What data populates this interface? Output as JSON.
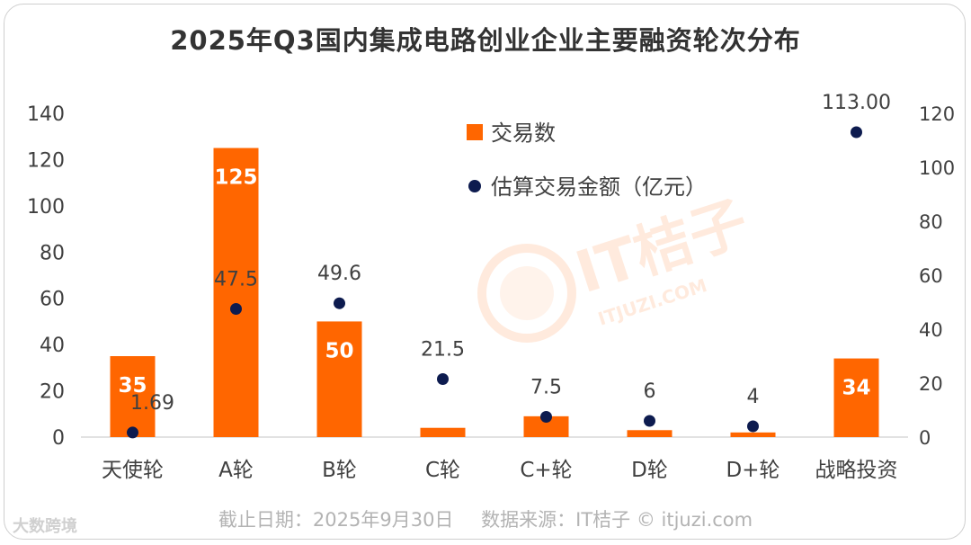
{
  "title": "2025年Q3国内集成电路创业企业主要融资轮次分布",
  "footer": {
    "date_label": "截止日期：2025年9月30日",
    "source_label": "数据来源：IT桔子 © itjuzi.com"
  },
  "watermark": {
    "main": "IT桔子",
    "sub": "ITJUZI.COM"
  },
  "brand": "大数跨境",
  "colors": {
    "bar": "#FF6600",
    "dot": "#0D1B4F",
    "axis": "#D9D9D9",
    "text": "#404040"
  },
  "chart_data": {
    "type": "bar",
    "categories": [
      "天使轮",
      "A轮",
      "B轮",
      "C轮",
      "C+轮",
      "D轮",
      "D+轮",
      "战略投资"
    ],
    "series": [
      {
        "name": "交易数",
        "kind": "bar",
        "axis": "left",
        "values": [
          35,
          125,
          50,
          4,
          9,
          3,
          2,
          34
        ],
        "labels": [
          "35",
          "125",
          "50",
          "",
          "",
          "",
          "",
          "34"
        ]
      },
      {
        "name": "估算交易金额（亿元）",
        "kind": "scatter",
        "axis": "right",
        "values": [
          1.69,
          47.5,
          49.6,
          21.5,
          7.5,
          6,
          4,
          113.0
        ],
        "labels": [
          "1.69",
          "47.5",
          "49.6",
          "21.5",
          "7.5",
          "6",
          "4",
          "113.00"
        ]
      }
    ],
    "y_left": {
      "min": 0,
      "max": 140,
      "ticks": [
        "0",
        "20",
        "40",
        "60",
        "80",
        "100",
        "120",
        "140"
      ]
    },
    "y_right": {
      "min": 0,
      "max": 120,
      "ticks": [
        "0",
        "20",
        "40",
        "60",
        "80",
        "100",
        "120"
      ]
    },
    "legend": [
      "交易数",
      "估算交易金额（亿元）"
    ],
    "legend_position": "top-center",
    "grid": false
  }
}
